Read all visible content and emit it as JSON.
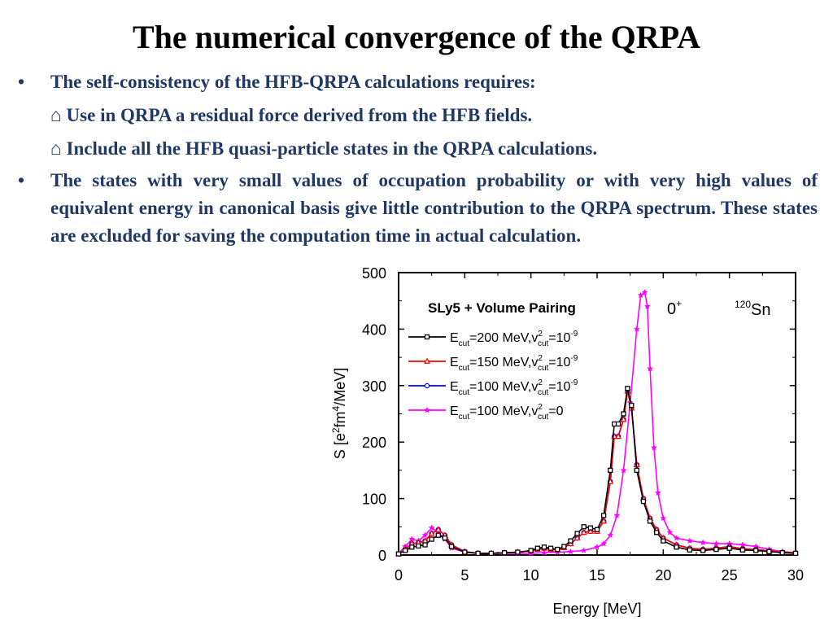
{
  "slide": {
    "title": "The numerical convergence of the QRPA",
    "bullet_symbol": "•",
    "bullet1": "The self-consistency of the HFB-QRPA calculations requires:",
    "sub1": "⌂ Use in QRPA a residual force derived from the HFB fields.",
    "sub2": "⌂ Include all the HFB quasi-particle states in the QRPA calculations.",
    "bullet2": "The states with very small values of occupation probability or with very high values of equivalent energy in canonical basis give little contribution to the QRPA spectrum. These states are excluded for saving the computation time in actual calculation."
  },
  "chart_data": {
    "type": "line",
    "title": "SLy5 + Volume Pairing",
    "annotation_multipole": "0",
    "annotation_multipole_sup": "+",
    "annotation_nucleus": "Sn",
    "annotation_nucleus_sup": "120",
    "xlabel": "Energy [MeV]",
    "ylabel": "S [e²fm⁴/MeV]",
    "xlim": [
      0,
      30
    ],
    "ylim": [
      0,
      500
    ],
    "xticks": [
      "0",
      "5",
      "10",
      "15",
      "20",
      "25",
      "30"
    ],
    "yticks": [
      "0",
      "100",
      "200",
      "300",
      "400",
      "500"
    ],
    "grid": false,
    "legend_position": "top-left",
    "series": [
      {
        "name": "Ecut=200 MeV,v2cut=10-9",
        "legend_main": "E",
        "legend_sub1": "cut",
        "legend_mid": "=200 MeV,v",
        "legend_sup2": "2",
        "legend_sub2": "cut",
        "legend_end": "=10",
        "legend_sup3": "-9",
        "color": "#000000",
        "marker": "square",
        "x": [
          0,
          0.5,
          1,
          1.5,
          2,
          2.5,
          3,
          3.5,
          4,
          5,
          6,
          7,
          8,
          9,
          10,
          10.5,
          11,
          11.5,
          12,
          12.5,
          13,
          13.5,
          14,
          14.5,
          15,
          15.5,
          16,
          16.3,
          16.6,
          17,
          17.3,
          17.6,
          18,
          18.5,
          19,
          19.5,
          20,
          21,
          22,
          23,
          24,
          25,
          26,
          27,
          28,
          29,
          30
        ],
        "y": [
          2,
          8,
          14,
          16,
          18,
          28,
          35,
          30,
          15,
          5,
          3,
          3,
          4,
          5,
          8,
          12,
          14,
          12,
          10,
          15,
          25,
          38,
          50,
          48,
          45,
          70,
          150,
          232,
          232,
          250,
          295,
          265,
          150,
          95,
          60,
          40,
          25,
          14,
          9,
          8,
          10,
          12,
          9,
          8,
          6,
          4,
          3
        ]
      },
      {
        "name": "Ecut=150 MeV,v2cut=10-9",
        "legend_main": "E",
        "legend_sub1": "cut",
        "legend_mid": "=150 MeV,v",
        "legend_sup2": "2",
        "legend_sub2": "cut",
        "legend_end": "=10",
        "legend_sup3": "-9",
        "color": "#ff0000",
        "marker": "triangle",
        "x": [
          0,
          0.5,
          1,
          1.5,
          2,
          2.5,
          3,
          3.5,
          4,
          5,
          6,
          7,
          8,
          9,
          10,
          10.5,
          11,
          11.5,
          12,
          12.5,
          13,
          13.5,
          14,
          14.5,
          15,
          15.5,
          16,
          16.3,
          16.6,
          17,
          17.3,
          17.6,
          18,
          18.5,
          19,
          19.5,
          20,
          21,
          22,
          23,
          24,
          25,
          26,
          27,
          28,
          29,
          30
        ],
        "y": [
          2,
          10,
          20,
          22,
          25,
          38,
          45,
          35,
          18,
          6,
          3,
          3,
          4,
          5,
          7,
          10,
          12,
          10,
          9,
          13,
          20,
          30,
          40,
          42,
          42,
          60,
          130,
          210,
          210,
          240,
          290,
          260,
          160,
          100,
          65,
          45,
          30,
          18,
          12,
          10,
          12,
          15,
          11,
          10,
          7,
          5,
          4
        ]
      },
      {
        "name": "Ecut=100 MeV,v2cut=10-9",
        "legend_main": "E",
        "legend_sub1": "cut",
        "legend_mid": "=100 MeV,v",
        "legend_sup2": "2",
        "legend_sub2": "cut",
        "legend_end": "=10",
        "legend_sup3": "-9",
        "color": "#0000ff",
        "marker": "circle",
        "x": [
          0,
          0.5,
          1,
          1.5,
          2,
          2.5,
          3,
          3.5,
          4,
          5,
          6,
          7,
          8,
          9,
          10,
          10.5,
          11,
          11.5,
          12,
          12.5,
          13,
          13.5,
          14,
          14.5,
          15,
          15.5,
          16,
          16.3,
          16.6,
          17,
          17.3,
          17.6,
          18,
          18.5,
          19,
          19.5,
          20,
          21,
          22,
          23,
          24,
          25,
          26,
          27,
          28,
          29,
          30
        ],
        "y": [
          2,
          10,
          20,
          22,
          25,
          38,
          45,
          35,
          18,
          6,
          3,
          3,
          4,
          5,
          7,
          10,
          12,
          10,
          9,
          13,
          20,
          30,
          40,
          42,
          42,
          60,
          130,
          210,
          210,
          240,
          290,
          260,
          160,
          100,
          65,
          45,
          30,
          18,
          12,
          10,
          12,
          15,
          11,
          10,
          7,
          5,
          4
        ]
      },
      {
        "name": "Ecut=100 MeV,v2cut=0",
        "legend_main": "E",
        "legend_sub1": "cut",
        "legend_mid": "=100 MeV,v",
        "legend_sup2": "2",
        "legend_sub2": "cut",
        "legend_end": "=0",
        "legend_sup3": "",
        "color": "#ff00ff",
        "marker": "star",
        "x": [
          0,
          0.5,
          1,
          1.5,
          2,
          2.5,
          3,
          3.5,
          4,
          5,
          6,
          7,
          8,
          9,
          10,
          11,
          12,
          13,
          14,
          15,
          15.5,
          16,
          16.5,
          17,
          17.5,
          18,
          18.3,
          18.6,
          18.8,
          19,
          19.3,
          19.6,
          20,
          20.5,
          21,
          22,
          23,
          24,
          25,
          26,
          27,
          28,
          29,
          30
        ],
        "y": [
          3,
          15,
          28,
          25,
          35,
          48,
          40,
          28,
          12,
          5,
          3,
          3,
          3,
          3,
          3,
          4,
          5,
          6,
          8,
          14,
          20,
          35,
          70,
          150,
          270,
          400,
          460,
          465,
          440,
          330,
          190,
          110,
          65,
          40,
          30,
          25,
          22,
          20,
          20,
          18,
          15,
          10,
          6,
          4
        ]
      }
    ]
  }
}
